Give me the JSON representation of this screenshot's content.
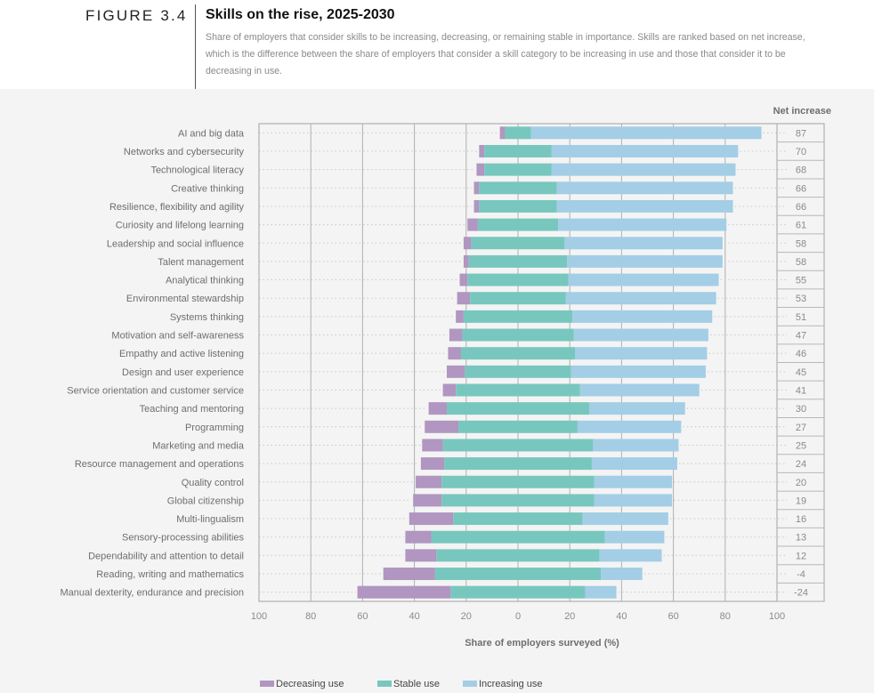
{
  "header": {
    "figure_label": "FIGURE 3.4",
    "title": "Skills on the rise, 2025-2030",
    "subtitle": "Share of employers that consider skills to be increasing, decreasing, or remaining stable in importance. Skills are ranked based on net increase, which is the difference between the share of employers that consider a skill category to be increasing in use and those that consider it to be decreasing in use."
  },
  "chart_data": {
    "type": "bar",
    "orientation": "horizontal-diverging-stacked",
    "title": "Skills on the rise, 2025-2030",
    "xlabel": "Share of employers surveyed (%)",
    "ylabel": "",
    "xlim": [
      -100,
      100
    ],
    "x_ticks": [
      100,
      80,
      60,
      40,
      20,
      0,
      20,
      40,
      60,
      80,
      100
    ],
    "x_tick_values": [
      -100,
      -80,
      -60,
      -40,
      -20,
      0,
      20,
      40,
      60,
      80,
      100
    ],
    "grid": true,
    "net_column_header": "Net increase",
    "legend_position": "bottom",
    "categories": [
      "AI and big data",
      "Networks and cybersecurity",
      "Technological literacy",
      "Creative thinking",
      "Resilience, flexibility and agility",
      "Curiosity and lifelong learning",
      "Leadership and social influence",
      "Talent management",
      "Analytical thinking",
      "Environmental stewardship",
      "Systems thinking",
      "Motivation and self-awareness",
      "Empathy and active listening",
      "Design and user experience",
      "Service orientation and customer service",
      "Teaching and mentoring",
      "Programming",
      "Marketing and media",
      "Resource management and operations",
      "Quality control",
      "Global citizenship",
      "Multi-lingualism",
      "Sensory-processing abilities",
      "Dependability and attention to detail",
      "Reading, writing and mathematics",
      "Manual dexterity, endurance and precision"
    ],
    "series": [
      {
        "name": "Decreasing use",
        "color": "#b096c0",
        "values": [
          2,
          2,
          3,
          2,
          2,
          4,
          3,
          2,
          3,
          5,
          3,
          5,
          5,
          7,
          5,
          7,
          13,
          8,
          9,
          10,
          11,
          17,
          10,
          12,
          20,
          36
        ]
      },
      {
        "name": "Stable use",
        "color": "#78c7be",
        "values": [
          10,
          26,
          26,
          30,
          30,
          31,
          36,
          38,
          39,
          37,
          42,
          43,
          44,
          41,
          48,
          55,
          46,
          58,
          57,
          59,
          59,
          50,
          67,
          63,
          64,
          52
        ]
      },
      {
        "name": "Increasing use",
        "color": "#a3cee6",
        "values": [
          89,
          72,
          71,
          68,
          68,
          65,
          61,
          60,
          58,
          58,
          54,
          52,
          51,
          52,
          46,
          37,
          40,
          33,
          33,
          30,
          30,
          33,
          23,
          24,
          16,
          12
        ]
      }
    ],
    "net_increase": [
      87,
      70,
      68,
      66,
      66,
      61,
      58,
      58,
      55,
      53,
      51,
      47,
      46,
      45,
      41,
      30,
      27,
      25,
      24,
      20,
      19,
      16,
      13,
      12,
      -4,
      -24
    ]
  },
  "colors": {
    "decreasing": "#b096c0",
    "stable": "#78c7be",
    "increasing": "#a3cee6",
    "panel_background": "#f4f4f4",
    "gridline": "#b0b0b0"
  }
}
